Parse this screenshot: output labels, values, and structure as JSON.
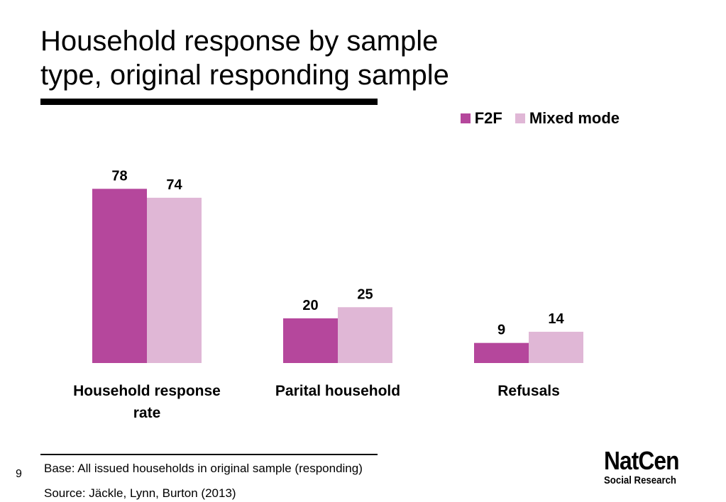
{
  "slide": {
    "title_line1": "Household response by sample",
    "title_line2": "type, original responding sample",
    "page_number": "9",
    "base_note": "Base: All issued households in original sample (responding)",
    "source_note": "Source: Jäckle, Lynn, Burton (2013)",
    "logo_main": "NatCen",
    "logo_sub": "Social Research"
  },
  "colors": {
    "f2f": "#b5479c",
    "mixed": "#e0b7d6"
  },
  "chart_data": {
    "type": "bar",
    "title": "Household response by sample type, original responding sample",
    "categories": [
      "Household response rate",
      "Parital household",
      "Refusals"
    ],
    "series": [
      {
        "name": "F2F",
        "values": [
          78,
          20,
          9
        ]
      },
      {
        "name": "Mixed mode",
        "values": [
          74,
          25,
          14
        ]
      }
    ],
    "xlabel": "",
    "ylabel": "",
    "legend": "top-right",
    "grid": false,
    "data_labels": true
  }
}
